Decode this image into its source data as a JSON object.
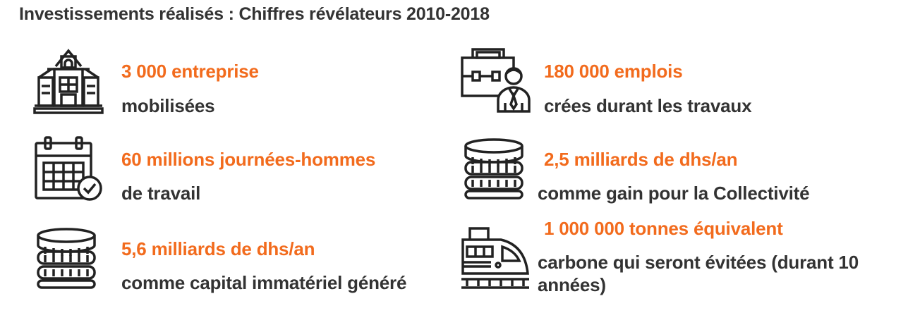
{
  "title": "Investissements réalisés : Chiffres révélateurs 2010-2018",
  "stats": [
    {
      "icon": "school-building-icon",
      "value": "3 000 entreprise",
      "description": "mobilisées"
    },
    {
      "icon": "calendar-check-icon",
      "value": "60 millions journées-hommes",
      "description": "de travail"
    },
    {
      "icon": "coin-stack-icon",
      "value": "5,6 milliards de dhs/an",
      "description": "comme capital immatériel généré"
    },
    {
      "icon": "briefcase-worker-icon",
      "value": "180 000 emplois",
      "description": "crées durant les travaux"
    },
    {
      "icon": "coin-stack-icon",
      "value": "2,5 milliards de dhs/an",
      "description": "comme gain pour la Collectivité"
    },
    {
      "icon": "train-icon",
      "value": "1 000 000 tonnes équivalent",
      "description": "carbone qui seront évitées (durant 10 années)"
    }
  ],
  "colors": {
    "accent": "#f26b1d",
    "text": "#333333",
    "icon": "#222222"
  }
}
